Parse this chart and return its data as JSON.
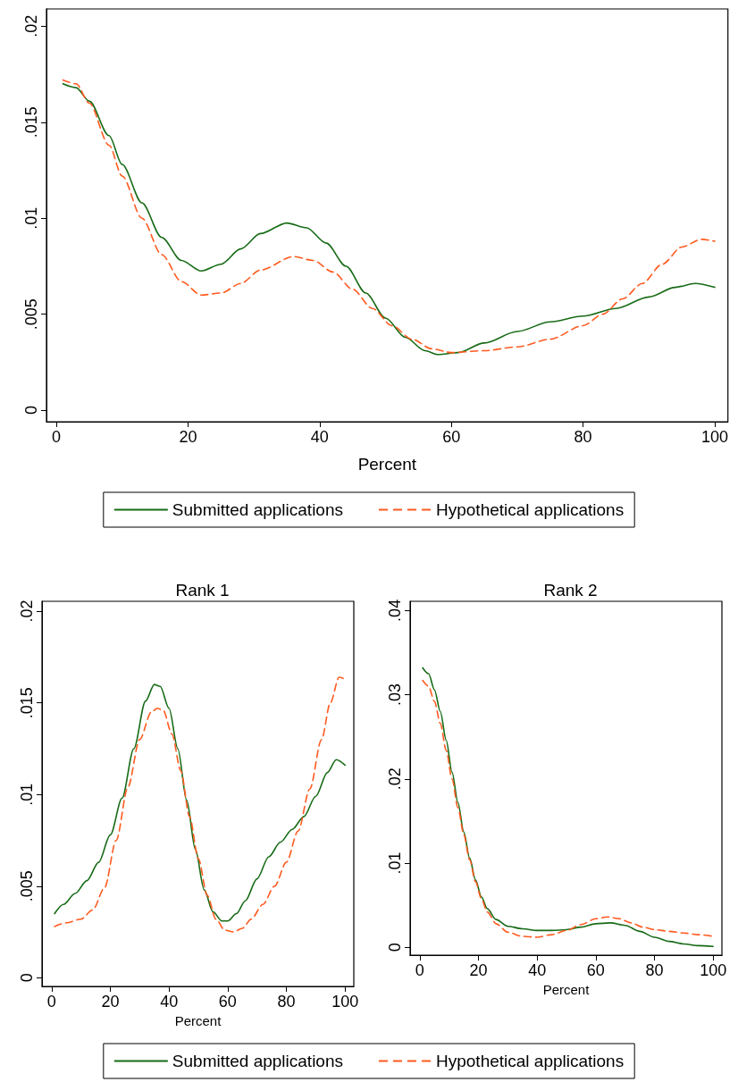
{
  "chart_data": [
    {
      "type": "line",
      "xlabel": "Percent",
      "xlim": [
        -1.5,
        102
      ],
      "xticks": [
        0,
        20,
        40,
        60,
        80,
        100
      ],
      "ylim": [
        -0.0006,
        0.0209
      ],
      "yticks": [
        {
          "value": 0,
          "label": "0"
        },
        {
          "value": 0.005,
          "label": ".005"
        },
        {
          "value": 0.01,
          "label": ".01"
        },
        {
          "value": 0.015,
          "label": ".015"
        },
        {
          "value": 0.02,
          "label": ".02"
        }
      ],
      "grid": false,
      "legend": "bottom",
      "marker": "none",
      "series": [
        {
          "name": "Submitted applications",
          "color": "#176b17",
          "line_style": "solid",
          "x": [
            1,
            3,
            5,
            8,
            10,
            13,
            16,
            19,
            22,
            25,
            28,
            31,
            35,
            38,
            41,
            44,
            47,
            50,
            53,
            56,
            58,
            61,
            65,
            70,
            75,
            80,
            85,
            90,
            94,
            97,
            100
          ],
          "values": [
            0.017,
            0.0168,
            0.0161,
            0.0143,
            0.0128,
            0.0108,
            0.009,
            0.0078,
            0.00725,
            0.0076,
            0.0084,
            0.0092,
            0.00975,
            0.0095,
            0.0087,
            0.0075,
            0.0061,
            0.0048,
            0.0038,
            0.0031,
            0.0029,
            0.003,
            0.0035,
            0.0041,
            0.0046,
            0.0049,
            0.0053,
            0.0059,
            0.0064,
            0.0066,
            0.0064
          ]
        },
        {
          "name": "Hypothetical applications",
          "color": "#ff5a1f",
          "line_style": "dashed",
          "x": [
            1,
            3,
            5,
            8,
            10,
            13,
            16,
            19,
            22,
            25,
            28,
            31,
            36,
            39,
            42,
            45,
            48,
            51,
            54,
            57,
            60,
            65,
            70,
            75,
            80,
            83,
            86,
            89,
            92,
            95,
            98,
            100
          ],
          "values": [
            0.0172,
            0.017,
            0.016,
            0.0138,
            0.0122,
            0.01,
            0.0081,
            0.0067,
            0.006,
            0.0061,
            0.0066,
            0.0073,
            0.008,
            0.0078,
            0.0072,
            0.0063,
            0.0053,
            0.0044,
            0.0037,
            0.0032,
            0.003,
            0.0031,
            0.0033,
            0.0037,
            0.0044,
            0.005,
            0.0058,
            0.0066,
            0.0076,
            0.0085,
            0.0089,
            0.0088
          ]
        }
      ]
    },
    {
      "type": "line",
      "title": "Rank 1",
      "xlabel": "Percent",
      "xlim": [
        -3.3,
        103
      ],
      "xticks": [
        0,
        20,
        40,
        60,
        80,
        100
      ],
      "ylim": [
        -0.00047,
        0.02054
      ],
      "yticks": [
        {
          "value": 0,
          "label": "0"
        },
        {
          "value": 0.005,
          "label": ".005"
        },
        {
          "value": 0.01,
          "label": ".01"
        },
        {
          "value": 0.015,
          "label": ".015"
        },
        {
          "value": 0.02,
          "label": ".02"
        }
      ],
      "grid": false,
      "legend": "bottom",
      "marker": "none",
      "series": [
        {
          "name": "Submitted applications",
          "color": "#176b17",
          "line_style": "solid",
          "x": [
            1,
            4,
            8,
            12,
            16,
            20,
            24,
            28,
            32,
            35,
            37,
            40,
            43,
            46,
            49,
            52,
            55,
            58,
            60,
            63,
            66,
            70,
            74,
            78,
            82,
            86,
            90,
            94,
            97,
            100
          ],
          "values": [
            0.0035,
            0.004,
            0.0046,
            0.0053,
            0.0063,
            0.0078,
            0.0098,
            0.0125,
            0.0151,
            0.016,
            0.0159,
            0.0147,
            0.0125,
            0.0097,
            0.007,
            0.0048,
            0.0036,
            0.0031,
            0.0031,
            0.0035,
            0.0042,
            0.0054,
            0.0066,
            0.0074,
            0.0081,
            0.0088,
            0.0099,
            0.0112,
            0.0119,
            0.0116
          ]
        },
        {
          "name": "Hypothetical applications",
          "color": "#ff5a1f",
          "line_style": "dashed",
          "x": [
            1,
            5,
            10,
            14,
            18,
            22,
            26,
            30,
            34,
            36,
            38,
            41,
            44,
            47,
            50,
            53,
            56,
            59,
            62,
            65,
            68,
            72,
            76,
            80,
            84,
            88,
            92,
            95,
            98,
            100
          ],
          "values": [
            0.0028,
            0.003,
            0.0032,
            0.0037,
            0.0049,
            0.0075,
            0.0104,
            0.013,
            0.0145,
            0.0147,
            0.0146,
            0.0133,
            0.0113,
            0.0088,
            0.0065,
            0.0045,
            0.0032,
            0.0026,
            0.0025,
            0.0027,
            0.0032,
            0.004,
            0.005,
            0.0063,
            0.008,
            0.0103,
            0.013,
            0.015,
            0.0164,
            0.0163
          ]
        }
      ]
    },
    {
      "type": "line",
      "title": "Rank 2",
      "xlabel": "Percent",
      "xlim": [
        -3.3,
        103
      ],
      "xticks": [
        0,
        20,
        40,
        60,
        80,
        100
      ],
      "ylim": [
        -0.00094,
        0.0411
      ],
      "yticks": [
        {
          "value": 0,
          "label": "0"
        },
        {
          "value": 0.01,
          "label": ".01"
        },
        {
          "value": 0.02,
          "label": ".02"
        },
        {
          "value": 0.03,
          "label": ".03"
        },
        {
          "value": 0.04,
          "label": ".04"
        }
      ],
      "grid": false,
      "marker": "none",
      "series": [
        {
          "color": "#176b17",
          "line_style": "solid",
          "x": [
            1,
            3,
            5,
            7,
            9,
            11,
            13,
            15,
            17,
            19,
            21,
            23,
            26,
            30,
            35,
            40,
            45,
            50,
            55,
            60,
            65,
            70,
            75,
            80,
            85,
            90,
            95,
            100
          ],
          "values": [
            0.0332,
            0.0325,
            0.0306,
            0.028,
            0.0246,
            0.0208,
            0.0172,
            0.0137,
            0.0106,
            0.008,
            0.006,
            0.0046,
            0.0033,
            0.0025,
            0.0022,
            0.002,
            0.002,
            0.0021,
            0.0024,
            0.0028,
            0.0029,
            0.0026,
            0.0019,
            0.0012,
            0.0007,
            0.0004,
            0.0002,
            0.0001
          ]
        },
        {
          "color": "#ff5a1f",
          "line_style": "dashed",
          "x": [
            1,
            3,
            5,
            7,
            9,
            11,
            13,
            15,
            17,
            19,
            21,
            23,
            26,
            30,
            35,
            40,
            45,
            50,
            55,
            60,
            64,
            68,
            72,
            76,
            80,
            85,
            90,
            95,
            100
          ],
          "values": [
            0.0317,
            0.031,
            0.0292,
            0.0266,
            0.0234,
            0.02,
            0.0166,
            0.0134,
            0.0104,
            0.0078,
            0.0058,
            0.0042,
            0.0028,
            0.0018,
            0.0013,
            0.0012,
            0.0015,
            0.002,
            0.0027,
            0.0034,
            0.0036,
            0.0034,
            0.0029,
            0.0024,
            0.0021,
            0.0019,
            0.0017,
            0.0015,
            0.0013
          ]
        }
      ]
    }
  ]
}
